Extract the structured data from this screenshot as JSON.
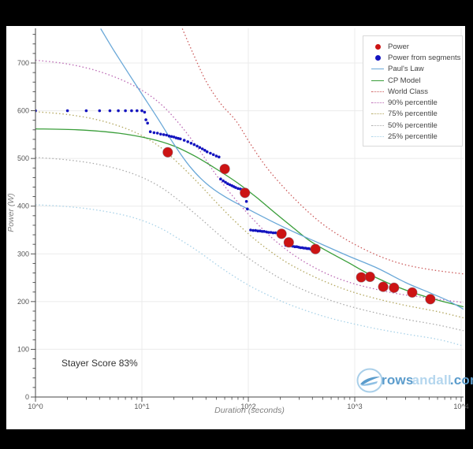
{
  "annotation": {
    "stayer_score": "Stayer Score 83%"
  },
  "logo": {
    "rows": "rows",
    "andall": "andall",
    "com": ".com"
  },
  "axes": {
    "x_label": "Duration (seconds)",
    "y_label": "Power (W)",
    "x_tick_labels": [
      "10^0",
      "10^1",
      "10^2",
      "10^3",
      "10^4"
    ],
    "y_tick_labels": [
      "0",
      "100",
      "200",
      "300",
      "400",
      "500",
      "600",
      "700"
    ]
  },
  "legend": {
    "items": [
      {
        "label": "Power",
        "marker": "dot",
        "color": "#cc1414"
      },
      {
        "label": "Power from segments",
        "marker": "dot",
        "color": "#1414bf"
      },
      {
        "label": "Paul's Law",
        "marker": "line",
        "color": "#6aa8d8"
      },
      {
        "label": "CP Model",
        "marker": "line",
        "color": "#3a9e3a"
      },
      {
        "label": "World Class",
        "marker": "dotted",
        "color": "#cc5c5c"
      },
      {
        "label": "90% percentile",
        "marker": "dotted",
        "color": "#bb68b4"
      },
      {
        "label": "75% percentile",
        "marker": "dotted",
        "color": "#b3a75f"
      },
      {
        "label": "50% percentile",
        "marker": "dotted",
        "color": "#ababab"
      },
      {
        "label": "25% percentile",
        "marker": "dotted",
        "color": "#a8d2e8"
      }
    ]
  },
  "chart_data": {
    "type": "line",
    "title": "",
    "xlabel": "Duration (seconds)",
    "ylabel": "Power (W)",
    "x_scale": "log",
    "xlim": [
      1,
      10500
    ],
    "ylim": [
      0,
      773
    ],
    "grid": true,
    "legend_position": "top-right",
    "x_ticks": [
      1,
      10,
      100,
      1000,
      10000
    ],
    "y_ticks": [
      0,
      100,
      200,
      300,
      400,
      500,
      600,
      700
    ],
    "y_minor_step": 20,
    "series": [
      {
        "name": "25% percentile",
        "style": "dotted",
        "color": "#a8d2e8",
        "width": 1.3,
        "points": [
          [
            1,
            403
          ],
          [
            2,
            399
          ],
          [
            4,
            391
          ],
          [
            8,
            377
          ],
          [
            14,
            357
          ],
          [
            22,
            332
          ],
          [
            34,
            305
          ],
          [
            50,
            278
          ],
          [
            72,
            254
          ],
          [
            105,
            232
          ],
          [
            155,
            213
          ],
          [
            230,
            196
          ],
          [
            350,
            181
          ],
          [
            550,
            167
          ],
          [
            900,
            155
          ],
          [
            1600,
            143
          ],
          [
            3000,
            132
          ],
          [
            6000,
            121
          ],
          [
            10500,
            107
          ]
        ]
      },
      {
        "name": "50% percentile",
        "style": "dotted",
        "color": "#ababab",
        "width": 1.3,
        "points": [
          [
            1,
            502
          ],
          [
            2,
            497
          ],
          [
            4,
            487
          ],
          [
            8,
            469
          ],
          [
            14,
            444
          ],
          [
            22,
            413
          ],
          [
            34,
            378
          ],
          [
            50,
            345
          ],
          [
            72,
            315
          ],
          [
            105,
            288
          ],
          [
            155,
            263
          ],
          [
            230,
            241
          ],
          [
            350,
            222
          ],
          [
            550,
            205
          ],
          [
            900,
            190
          ],
          [
            1600,
            176
          ],
          [
            3000,
            163
          ],
          [
            6000,
            151
          ],
          [
            10500,
            139
          ]
        ]
      },
      {
        "name": "75% percentile",
        "style": "dotted",
        "color": "#b3a75f",
        "width": 1.3,
        "points": [
          [
            1,
            598
          ],
          [
            2,
            592
          ],
          [
            4,
            580
          ],
          [
            8,
            558
          ],
          [
            14,
            528
          ],
          [
            22,
            490
          ],
          [
            34,
            448
          ],
          [
            50,
            408
          ],
          [
            72,
            372
          ],
          [
            105,
            338
          ],
          [
            155,
            308
          ],
          [
            230,
            282
          ],
          [
            350,
            260
          ],
          [
            550,
            240
          ],
          [
            900,
            222
          ],
          [
            1600,
            206
          ],
          [
            3000,
            192
          ],
          [
            6000,
            179
          ],
          [
            10500,
            166
          ]
        ]
      },
      {
        "name": "90% percentile",
        "style": "dotted",
        "color": "#bb68b4",
        "width": 1.3,
        "points": [
          [
            1,
            706
          ],
          [
            2,
            698
          ],
          [
            4,
            682
          ],
          [
            8,
            655
          ],
          [
            14,
            620
          ],
          [
            22,
            575
          ],
          [
            34,
            520
          ],
          [
            50,
            465
          ],
          [
            72,
            420
          ],
          [
            105,
            378
          ],
          [
            155,
            340
          ],
          [
            230,
            308
          ],
          [
            350,
            281
          ],
          [
            550,
            258
          ],
          [
            900,
            240
          ],
          [
            1500,
            227
          ],
          [
            2600,
            216
          ],
          [
            4800,
            208
          ],
          [
            10500,
            198
          ]
        ]
      },
      {
        "name": "World Class",
        "style": "dotted",
        "color": "#cc5c5c",
        "width": 1.3,
        "points": [
          [
            24,
            772
          ],
          [
            30,
            722
          ],
          [
            40,
            662
          ],
          [
            55,
            615
          ],
          [
            77,
            578
          ],
          [
            105,
            530
          ],
          [
            150,
            480
          ],
          [
            220,
            437
          ],
          [
            320,
            400
          ],
          [
            470,
            367
          ],
          [
            700,
            340
          ],
          [
            1100,
            315
          ],
          [
            1800,
            293
          ],
          [
            3000,
            277
          ],
          [
            5500,
            266
          ],
          [
            10500,
            258
          ]
        ]
      },
      {
        "name": "CP Model",
        "style": "solid",
        "color": "#3a9e3a",
        "width": 1.3,
        "points": [
          [
            1,
            562
          ],
          [
            2.5,
            560
          ],
          [
            6,
            553
          ],
          [
            12,
            541
          ],
          [
            20,
            526
          ],
          [
            32,
            504
          ],
          [
            50,
            478
          ],
          [
            80,
            448
          ],
          [
            120,
            418
          ],
          [
            180,
            385
          ],
          [
            260,
            356
          ],
          [
            380,
            327
          ],
          [
            560,
            305
          ],
          [
            850,
            283
          ],
          [
            1300,
            260
          ],
          [
            2000,
            240
          ],
          [
            3200,
            222
          ],
          [
            5200,
            207
          ],
          [
            8000,
            196
          ],
          [
            10500,
            189
          ]
        ]
      },
      {
        "name": "Paul's Law",
        "style": "solid",
        "color": "#6aa8d8",
        "width": 1.3,
        "points": [
          [
            4.1,
            772
          ],
          [
            5.5,
            725
          ],
          [
            7.5,
            678
          ],
          [
            10,
            635
          ],
          [
            14,
            585
          ],
          [
            20,
            530
          ],
          [
            28,
            484
          ],
          [
            40,
            448
          ],
          [
            60,
            420
          ],
          [
            95,
            396
          ],
          [
            160,
            370
          ],
          [
            280,
            344
          ],
          [
            480,
            321
          ],
          [
            840,
            297
          ],
          [
            1600,
            271
          ],
          [
            3000,
            240
          ],
          [
            5000,
            219
          ],
          [
            7500,
            202
          ],
          [
            10500,
            184
          ]
        ]
      },
      {
        "name": "Power from segments",
        "style": "scatter",
        "color": "#1414bf",
        "size": 1.8,
        "points": [
          [
            1,
            600
          ],
          [
            2,
            600
          ],
          [
            3,
            600
          ],
          [
            4,
            600
          ],
          [
            5,
            600
          ],
          [
            6,
            600
          ],
          [
            7,
            600
          ],
          [
            8,
            600
          ],
          [
            9,
            600
          ],
          [
            10,
            600
          ],
          [
            10.6,
            597
          ],
          [
            10.9,
            581
          ],
          [
            11.3,
            574
          ],
          [
            12,
            556
          ],
          [
            13,
            554
          ],
          [
            14,
            553
          ],
          [
            15,
            551
          ],
          [
            16,
            550
          ],
          [
            17,
            549
          ],
          [
            18,
            547
          ],
          [
            19,
            546
          ],
          [
            20,
            545
          ],
          [
            21,
            543
          ],
          [
            22,
            542
          ],
          [
            23,
            541
          ],
          [
            25,
            538
          ],
          [
            27,
            535
          ],
          [
            29,
            532
          ],
          [
            31,
            529
          ],
          [
            33,
            526
          ],
          [
            35,
            523
          ],
          [
            37,
            520
          ],
          [
            39,
            517
          ],
          [
            41,
            514
          ],
          [
            44,
            511
          ],
          [
            47,
            508
          ],
          [
            50,
            505
          ],
          [
            53,
            503
          ],
          [
            55,
            457
          ],
          [
            58,
            453
          ],
          [
            61,
            450
          ],
          [
            64,
            447
          ],
          [
            67,
            445
          ],
          [
            70,
            443
          ],
          [
            73,
            441
          ],
          [
            76,
            439
          ],
          [
            80,
            437
          ],
          [
            84,
            436
          ],
          [
            88,
            435
          ],
          [
            92,
            434
          ],
          [
            96,
            410
          ],
          [
            98,
            394
          ],
          [
            105,
            350
          ],
          [
            111,
            349
          ],
          [
            117,
            349
          ],
          [
            123,
            348
          ],
          [
            129,
            348
          ],
          [
            135,
            347
          ],
          [
            141,
            347
          ],
          [
            148,
            346
          ],
          [
            155,
            345
          ],
          [
            163,
            345
          ],
          [
            171,
            344
          ],
          [
            180,
            344
          ],
          [
            190,
            343
          ],
          [
            225,
            318
          ],
          [
            237,
            317
          ],
          [
            249,
            317
          ],
          [
            261,
            316
          ],
          [
            273,
            315
          ],
          [
            285,
            315
          ],
          [
            297,
            314
          ],
          [
            309,
            313
          ],
          [
            321,
            313
          ],
          [
            333,
            312
          ],
          [
            345,
            312
          ],
          [
            357,
            311
          ],
          [
            370,
            311
          ],
          [
            385,
            310
          ],
          [
            400,
            310
          ],
          [
            415,
            309
          ]
        ]
      },
      {
        "name": "Power",
        "style": "scatter",
        "color": "#cc1414",
        "size": 6.3,
        "points": [
          [
            17.5,
            513
          ],
          [
            60,
            478
          ],
          [
            93,
            428
          ],
          [
            205,
            342
          ],
          [
            240,
            324
          ],
          [
            427,
            310
          ],
          [
            1150,
            251
          ],
          [
            1390,
            252
          ],
          [
            1850,
            231
          ],
          [
            2340,
            229
          ],
          [
            3470,
            219
          ],
          [
            5130,
            205
          ]
        ]
      }
    ]
  }
}
